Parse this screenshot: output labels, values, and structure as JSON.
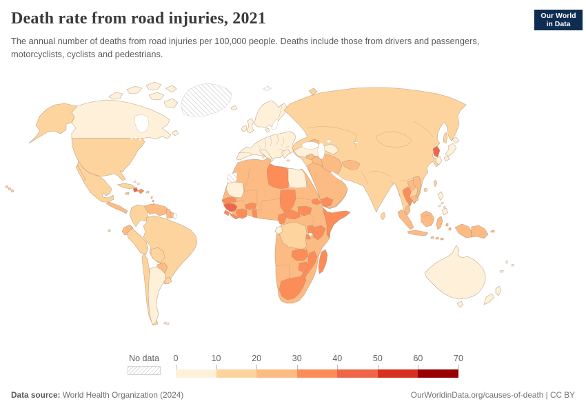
{
  "header": {
    "title": "Death rate from road injuries, 2021",
    "subtitle": "The annual number of deaths from road injuries per 100,000 people. Deaths include those from drivers and passengers, motorcyclists, cyclists and pedestrians.",
    "logo": {
      "line1": "Our World",
      "line2": "in Data",
      "bg": "#0f2d52",
      "accent": "#9f2f33"
    }
  },
  "map": {
    "no_data_label": "No data",
    "palette": [
      "#fef0d9",
      "#fdd49e",
      "#fdbb84",
      "#fc8d59",
      "#ef6548",
      "#d7301f",
      "#990000"
    ],
    "bin_ranges": [
      "0-10",
      "10-20",
      "20-30",
      "30-40",
      "40-50",
      "50-60",
      "60-70"
    ],
    "bin_labels": [
      "0",
      "10",
      "20",
      "30",
      "40",
      "50",
      "60",
      "70"
    ],
    "border_color": "#b1937b",
    "regions": {
      "canada": 0,
      "greenland": -1,
      "alaska": 1,
      "usa": 1,
      "mexico": 1,
      "central_america": 2,
      "cuba": 1,
      "haiti": 4,
      "dominican_republic": 3,
      "jamaica": 2,
      "puerto_rico": 1,
      "bahamas": 0,
      "lesser_antilles": 2,
      "hawaii": 1,
      "colombia": 1,
      "venezuela": 2,
      "guyana": 2,
      "suriname": 2,
      "french_guiana": -1,
      "ecuador": 2,
      "peru": 1,
      "brazil": 1,
      "bolivia": 1,
      "paraguay": 2,
      "chile": 1,
      "argentina": 0,
      "uruguay": 1,
      "falklands": 0,
      "galapagos": 1,
      "iceland": 0,
      "uk": 0,
      "ireland": 0,
      "scandinavia": 0,
      "denmark": 0,
      "europe": 0,
      "italy": 0,
      "greece": 0,
      "svalbard": -1,
      "russia_asia": 1,
      "turkey": 0,
      "caucasus": 2,
      "uzbekistan": 0,
      "iran": 2,
      "iraq": 2,
      "syria": 2,
      "arabia": 2,
      "yemen": 3,
      "afghanistan": 2,
      "egypt": 0,
      "libya": 3,
      "chad": 3,
      "mauritania": 0,
      "western_sahara": -1,
      "senegal": 3,
      "guinea": 4,
      "sierra_leone": 3,
      "liberia": 3,
      "ivory_coast": 3,
      "togo_benin": 3,
      "burkina_faso": 3,
      "cameroon": 3,
      "central_african_republic": 3,
      "south_sudan": 3,
      "eritrea": 3,
      "somalia": 3,
      "kenya": 3,
      "uganda": 3,
      "rwanda_burundi": 3,
      "dr_congo": 1,
      "gabon": 0,
      "zambia": 3,
      "mozambique": 3,
      "zimbabwe": 3,
      "south_africa": 3,
      "madagascar": 3,
      "africa": 2,
      "north_korea": 4,
      "south_korea": 0,
      "japan": 0,
      "taiwan": 1,
      "hainan": 1,
      "thailand": 3,
      "laos": 2,
      "vietnam": 2,
      "cambodia": 2,
      "malaysia": 2,
      "sumatra": 2,
      "java": 2,
      "borneo": 2,
      "sulawesi": 2,
      "lesser_sunda": 2,
      "moluccas": 2,
      "indonesia_papua": 2,
      "papua_new_guinea": 2,
      "philippines": 0,
      "sri_lanka": 1,
      "australia": 0,
      "tasmania": 0,
      "new_zealand": 0,
      "pacific_islands": 0
    }
  },
  "chart_data": {
    "type": "choropleth_map",
    "title": "Death rate from road injuries, 2021",
    "unit": "deaths per 100,000 people",
    "legend_ticks": [
      0,
      10,
      20,
      30,
      40,
      50,
      60,
      70
    ],
    "color_bins": [
      "0-10",
      "10-20",
      "20-30",
      "30-40",
      "40-50",
      "50-60",
      "60-70",
      "No data"
    ],
    "notable_values": {
      "Canada": "0-10",
      "United States": "10-20",
      "Mexico": "10-20",
      "Brazil": "10-20",
      "Argentina": "0-10",
      "Paraguay": "20-30",
      "Haiti": "40-50",
      "Europe": "0-10",
      "Russia": "10-20",
      "China": "10-20",
      "India": "10-20",
      "Libya": "30-40",
      "Guinea": "40-50",
      "North Korea": "40-50",
      "Thailand": "30-40",
      "Japan": "0-10",
      "Australia": "0-10",
      "Saudi Arabia": "20-30",
      "Iran": "20-30",
      "Sub-Saharan Africa": "20-40",
      "Greenland": "No data",
      "Western Sahara": "No data",
      "French Guiana": "No data"
    }
  },
  "footer": {
    "source_label": "Data source:",
    "source": " World Health Organization (2024)",
    "credit": "OurWorldinData.org/causes-of-death | CC BY"
  }
}
